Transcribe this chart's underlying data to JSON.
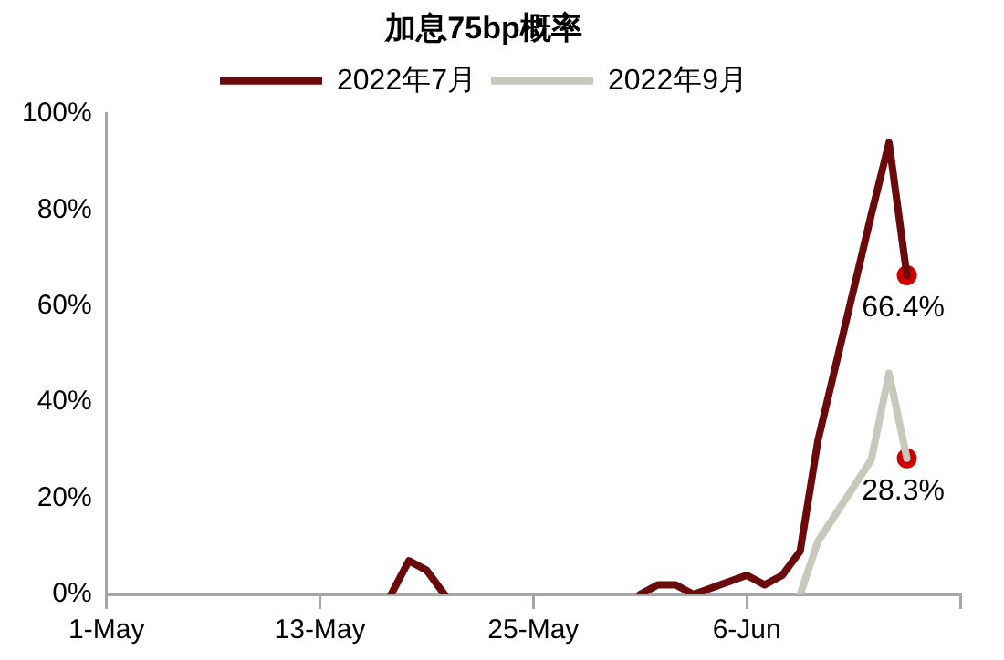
{
  "chart_data": {
    "type": "line",
    "title": "加息75bp概率",
    "legend": "top",
    "marker": "none",
    "grid": false,
    "xlim": [
      "2022-05-01",
      "2022-06-18"
    ],
    "xticks": [
      {
        "value": "2022-05-01",
        "label": "1-May"
      },
      {
        "value": "2022-05-13",
        "label": "13-May"
      },
      {
        "value": "2022-05-25",
        "label": "25-May"
      },
      {
        "value": "2022-06-06",
        "label": "6-Jun"
      },
      {
        "value": "2022-06-18",
        "label": null
      }
    ],
    "ylim": [
      0,
      100
    ],
    "yticks": [
      {
        "value": 0,
        "label": "0%"
      },
      {
        "value": 20,
        "label": "20%"
      },
      {
        "value": 40,
        "label": "40%"
      },
      {
        "value": 60,
        "label": "60%"
      },
      {
        "value": 80,
        "label": "80%"
      },
      {
        "value": 100,
        "label": "100%"
      }
    ],
    "series": [
      {
        "name": "2022年7月",
        "color": "#6b0a0a",
        "x": [
          "2022-05-17",
          "2022-05-18",
          "2022-05-19",
          "2022-05-20",
          "2022-05-21",
          "2022-05-31",
          "2022-06-01",
          "2022-06-02",
          "2022-06-03",
          "2022-06-06",
          "2022-06-07",
          "2022-06-08",
          "2022-06-09",
          "2022-06-10",
          "2022-06-13",
          "2022-06-14",
          "2022-06-15"
        ],
        "values": [
          0,
          7,
          5,
          0,
          null,
          0,
          2,
          2,
          0,
          4,
          2,
          4,
          9,
          32,
          79,
          94,
          66.4
        ]
      },
      {
        "name": "2022年9月",
        "color": "#c8c8bc",
        "x": [
          "2022-06-09",
          "2022-06-10",
          "2022-06-13",
          "2022-06-14",
          "2022-06-15"
        ],
        "values": [
          0,
          11,
          28,
          46,
          28.3
        ]
      },
      {
        "type": "scatter",
        "marker": "circle",
        "color": "#cc0000",
        "x": [
          "2022-06-15"
        ],
        "values": [
          66.4
        ],
        "value_labels": [
          "66.4%"
        ]
      },
      {
        "type": "scatter",
        "marker": "circle",
        "color": "#cc0000",
        "x": [
          "2022-06-15"
        ],
        "values": [
          28.3
        ],
        "value_labels": [
          "28.3%"
        ]
      }
    ]
  }
}
